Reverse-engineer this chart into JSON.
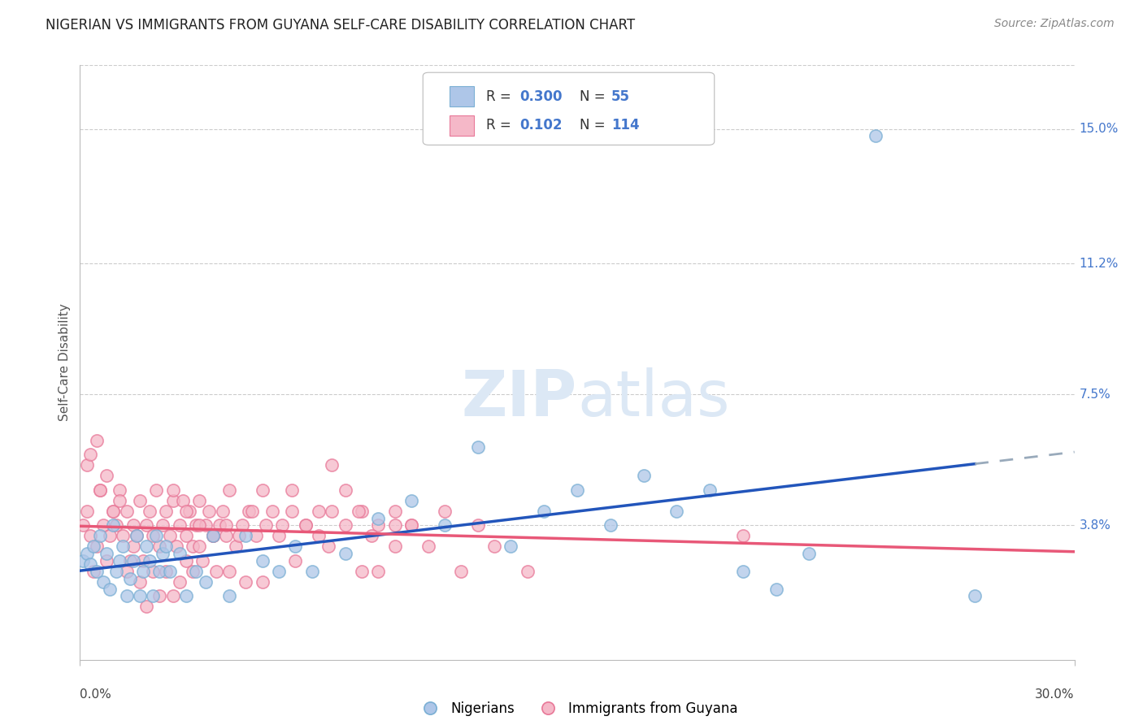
{
  "title": "NIGERIAN VS IMMIGRANTS FROM GUYANA SELF-CARE DISABILITY CORRELATION CHART",
  "source": "Source: ZipAtlas.com",
  "ylabel": "Self-Care Disability",
  "ytick_labels": [
    "15.0%",
    "11.2%",
    "7.5%",
    "3.8%"
  ],
  "ytick_values": [
    0.15,
    0.112,
    0.075,
    0.038
  ],
  "xmin": 0.0,
  "xmax": 0.3,
  "ymin": 0.0,
  "ymax": 0.168,
  "nigerian_color": "#aec6e8",
  "nigerian_edge_color": "#7aafd4",
  "guyana_color": "#f5b8c8",
  "guyana_edge_color": "#e87898",
  "nigerian_line_color": "#2255bb",
  "guyana_line_color": "#e85878",
  "dash_color": "#99aabb",
  "nigerian_R": 0.3,
  "guyana_R": 0.102,
  "nigerian_N": 55,
  "guyana_N": 114,
  "legend_R_color": "#4477cc",
  "legend_N_color": "#4477cc",
  "watermark_color": "#dce8f5",
  "nigerians_x": [
    0.001,
    0.002,
    0.003,
    0.004,
    0.005,
    0.006,
    0.007,
    0.008,
    0.009,
    0.01,
    0.011,
    0.012,
    0.013,
    0.014,
    0.015,
    0.016,
    0.017,
    0.018,
    0.019,
    0.02,
    0.021,
    0.022,
    0.023,
    0.024,
    0.025,
    0.026,
    0.027,
    0.03,
    0.032,
    0.035,
    0.038,
    0.04,
    0.045,
    0.05,
    0.055,
    0.06,
    0.065,
    0.07,
    0.08,
    0.09,
    0.1,
    0.11,
    0.12,
    0.13,
    0.14,
    0.15,
    0.16,
    0.17,
    0.18,
    0.19,
    0.2,
    0.21,
    0.22,
    0.24,
    0.27
  ],
  "nigerians_y": [
    0.028,
    0.03,
    0.027,
    0.032,
    0.025,
    0.035,
    0.022,
    0.03,
    0.02,
    0.038,
    0.025,
    0.028,
    0.032,
    0.018,
    0.023,
    0.028,
    0.035,
    0.018,
    0.025,
    0.032,
    0.028,
    0.018,
    0.035,
    0.025,
    0.03,
    0.032,
    0.025,
    0.03,
    0.018,
    0.025,
    0.022,
    0.035,
    0.018,
    0.035,
    0.028,
    0.025,
    0.032,
    0.025,
    0.03,
    0.04,
    0.045,
    0.038,
    0.06,
    0.032,
    0.042,
    0.048,
    0.038,
    0.052,
    0.042,
    0.048,
    0.025,
    0.02,
    0.03,
    0.148,
    0.018
  ],
  "guyana_x": [
    0.001,
    0.002,
    0.003,
    0.004,
    0.005,
    0.006,
    0.007,
    0.008,
    0.009,
    0.01,
    0.011,
    0.012,
    0.013,
    0.014,
    0.015,
    0.016,
    0.017,
    0.018,
    0.019,
    0.02,
    0.021,
    0.022,
    0.023,
    0.024,
    0.025,
    0.026,
    0.027,
    0.028,
    0.029,
    0.03,
    0.031,
    0.032,
    0.033,
    0.034,
    0.035,
    0.036,
    0.037,
    0.038,
    0.039,
    0.04,
    0.041,
    0.042,
    0.043,
    0.044,
    0.045,
    0.047,
    0.049,
    0.051,
    0.053,
    0.055,
    0.058,
    0.061,
    0.064,
    0.068,
    0.072,
    0.076,
    0.08,
    0.085,
    0.09,
    0.095,
    0.1,
    0.11,
    0.12,
    0.055,
    0.065,
    0.075,
    0.085,
    0.095,
    0.105,
    0.115,
    0.125,
    0.135,
    0.002,
    0.003,
    0.005,
    0.006,
    0.008,
    0.01,
    0.012,
    0.014,
    0.016,
    0.018,
    0.02,
    0.022,
    0.024,
    0.026,
    0.028,
    0.03,
    0.032,
    0.034,
    0.036,
    0.04,
    0.045,
    0.05,
    0.028,
    0.032,
    0.036,
    0.04,
    0.044,
    0.048,
    0.052,
    0.056,
    0.06,
    0.064,
    0.068,
    0.072,
    0.076,
    0.08,
    0.084,
    0.088,
    0.09,
    0.095,
    0.1,
    0.2
  ],
  "guyana_y": [
    0.038,
    0.042,
    0.035,
    0.025,
    0.032,
    0.048,
    0.038,
    0.028,
    0.035,
    0.042,
    0.038,
    0.048,
    0.035,
    0.042,
    0.028,
    0.038,
    0.035,
    0.045,
    0.028,
    0.038,
    0.042,
    0.035,
    0.048,
    0.032,
    0.038,
    0.042,
    0.035,
    0.045,
    0.032,
    0.038,
    0.045,
    0.035,
    0.042,
    0.032,
    0.038,
    0.045,
    0.028,
    0.038,
    0.042,
    0.035,
    0.025,
    0.038,
    0.042,
    0.035,
    0.048,
    0.032,
    0.038,
    0.042,
    0.035,
    0.048,
    0.042,
    0.038,
    0.048,
    0.038,
    0.042,
    0.055,
    0.048,
    0.042,
    0.038,
    0.042,
    0.038,
    0.042,
    0.038,
    0.022,
    0.028,
    0.032,
    0.025,
    0.038,
    0.032,
    0.025,
    0.032,
    0.025,
    0.055,
    0.058,
    0.062,
    0.048,
    0.052,
    0.042,
    0.045,
    0.025,
    0.032,
    0.022,
    0.015,
    0.025,
    0.018,
    0.025,
    0.018,
    0.022,
    0.028,
    0.025,
    0.032,
    0.035,
    0.025,
    0.022,
    0.048,
    0.042,
    0.038,
    0.035,
    0.038,
    0.035,
    0.042,
    0.038,
    0.035,
    0.042,
    0.038,
    0.035,
    0.042,
    0.038,
    0.042,
    0.035,
    0.025,
    0.032,
    0.038,
    0.035
  ]
}
